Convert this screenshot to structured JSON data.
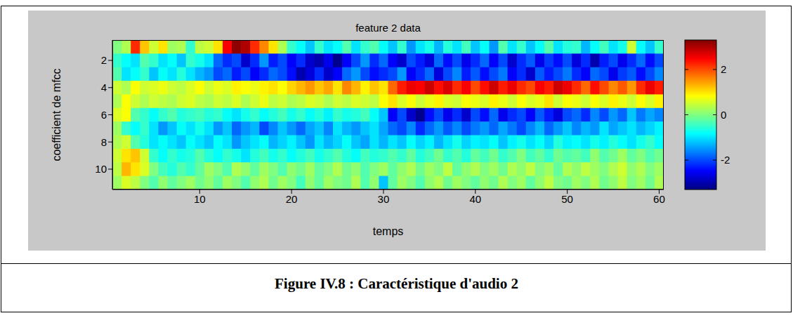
{
  "chart_data": {
    "type": "heatmap",
    "title": "feature 2 data",
    "x_label": "temps",
    "y_label": "coefficient de mfcc",
    "x": [
      1,
      2,
      3,
      4,
      5,
      6,
      7,
      8,
      9,
      10,
      11,
      12,
      13,
      14,
      15,
      16,
      17,
      18,
      19,
      20,
      21,
      22,
      23,
      24,
      25,
      26,
      27,
      28,
      29,
      30,
      31,
      32,
      33,
      34,
      35,
      36,
      37,
      38,
      39,
      40,
      41,
      42,
      43,
      44,
      45,
      46,
      47,
      48,
      49,
      50,
      51,
      52,
      53,
      54,
      55,
      56,
      57,
      58,
      59,
      60
    ],
    "y": [
      1,
      2,
      3,
      4,
      5,
      6,
      7,
      8,
      9,
      10,
      11
    ],
    "xlim": [
      0.5,
      60.5
    ],
    "xticks": [
      10,
      20,
      30,
      40,
      50,
      60
    ],
    "ylim": [
      0.5,
      11.5
    ],
    "yticks": [
      2,
      4,
      6,
      8,
      10
    ],
    "cells": [
      [
        0,
        0.3,
        2.2,
        1.2,
        0.5,
        1.0,
        0.2,
        0.3,
        -0.5,
        0.4,
        0.5,
        1.0,
        2.5,
        3.2,
        3.0,
        2.2,
        1.6,
        1.0,
        0.3,
        -0.5,
        -0.8,
        -1.2,
        -0.5,
        -1.0,
        -0.8,
        -0.3,
        -1.0,
        -0.5,
        -0.3,
        -0.8,
        -1.2,
        -0.5,
        -1.5,
        -1.0,
        -0.7,
        -1.3,
        -0.6,
        -1.0,
        -0.4,
        -1.2,
        -0.8,
        -1.5,
        -0.3,
        -1.0,
        -0.5,
        -1.2,
        -0.8,
        -0.3,
        -1.0,
        -0.6,
        -0.5,
        -1.3,
        -0.8,
        -0.4,
        -1.0,
        -0.7,
        0.5,
        -0.8,
        -1.2,
        -0.5
      ],
      [
        -0.5,
        -0.8,
        -1.0,
        -0.3,
        -0.5,
        -1.0,
        -0.8,
        -1.2,
        -0.5,
        -0.7,
        -1.0,
        -1.8,
        -2.2,
        -2.0,
        -2.8,
        -2.2,
        -1.5,
        -2.3,
        -2.0,
        -2.5,
        -2.2,
        -2.8,
        -3.0,
        -2.6,
        -3.2,
        -2.5,
        -2.0,
        -1.5,
        -2.2,
        -1.8,
        -2.5,
        -2.8,
        -2.0,
        -2.3,
        -2.7,
        -1.8,
        -2.4,
        -2.0,
        -2.6,
        -2.2,
        -1.8,
        -2.5,
        -2.0,
        -2.8,
        -2.2,
        -1.9,
        -2.6,
        -2.1,
        -2.4,
        -2.0,
        -2.7,
        -2.2,
        -3.0,
        -2.3,
        -2.0,
        -2.6,
        -2.2,
        -1.8,
        -2.4,
        -2.0
      ],
      [
        -0.3,
        -1.0,
        -0.8,
        -0.5,
        -1.2,
        -0.8,
        -1.0,
        -0.6,
        -1.0,
        -1.3,
        -1.5,
        -2.0,
        -1.8,
        -2.3,
        -2.0,
        -2.5,
        -2.2,
        -1.8,
        -2.0,
        -2.4,
        -3.0,
        -2.7,
        -2.2,
        -2.8,
        -2.5,
        -1.8,
        -1.5,
        -2.0,
        -2.4,
        -2.2,
        -2.0,
        -1.5,
        -2.5,
        -2.2,
        -1.8,
        -2.7,
        -2.0,
        -1.6,
        -2.3,
        -1.9,
        -2.4,
        -2.0,
        -1.7,
        -2.5,
        -2.2,
        -2.8,
        -1.9,
        -2.3,
        -2.0,
        -1.7,
        -2.2,
        -2.5,
        -1.8,
        -2.0,
        -2.6,
        -2.1,
        -1.9,
        -2.4,
        -2.0,
        -1.6
      ],
      [
        0.5,
        0.3,
        0.8,
        0.5,
        0.6,
        0.7,
        0.5,
        0.4,
        0.6,
        0.8,
        0.5,
        0.7,
        0.6,
        0.9,
        0.8,
        0.7,
        0.9,
        1.0,
        0.8,
        1.1,
        1.3,
        1.5,
        1.2,
        1.4,
        1.0,
        1.6,
        1.3,
        0.9,
        1.2,
        1.0,
        1.8,
        2.3,
        2.6,
        2.5,
        2.8,
        2.4,
        2.7,
        2.2,
        2.5,
        2.0,
        2.4,
        2.8,
        2.3,
        2.6,
        2.2,
        2.0,
        2.5,
        2.3,
        2.8,
        2.6,
        2.2,
        1.8,
        2.4,
        2.0,
        1.6,
        1.9,
        1.5,
        2.2,
        2.6,
        2.3
      ],
      [
        0.3,
        0.8,
        0.5,
        0.3,
        0.5,
        0.4,
        0.3,
        0.5,
        0.6,
        0.4,
        0.3,
        0.5,
        0.4,
        0.6,
        0.3,
        0.5,
        0.7,
        0.4,
        0.5,
        0.3,
        0.4,
        0.6,
        0.5,
        0.3,
        0.5,
        0.4,
        0.6,
        0.5,
        0.4,
        0.8,
        1.0,
        0.6,
        0.8,
        0.5,
        0.7,
        0.9,
        0.6,
        0.5,
        0.8,
        0.7,
        0.6,
        0.9,
        0.7,
        0.5,
        0.8,
        0.6,
        0.7,
        1.0,
        0.5,
        0.8,
        0.7,
        0.5,
        0.8,
        0.6,
        0.9,
        0.7,
        0.5,
        0.8,
        0.6,
        0.9
      ],
      [
        0.6,
        0.8,
        -0.3,
        -0.5,
        -0.8,
        -0.5,
        -0.3,
        -0.6,
        -0.5,
        -0.4,
        -0.6,
        -0.5,
        -0.8,
        -1.0,
        -0.7,
        -0.5,
        -0.8,
        -0.6,
        -0.4,
        -0.7,
        -0.5,
        -0.8,
        -0.6,
        -0.9,
        -0.5,
        -0.7,
        -0.6,
        -0.4,
        -0.8,
        -1.2,
        -2.5,
        -2.0,
        -2.8,
        -3.2,
        -2.4,
        -2.0,
        -2.6,
        -2.2,
        -2.8,
        -2.0,
        -2.4,
        -1.8,
        -2.6,
        -2.2,
        -2.0,
        -2.5,
        -1.9,
        -2.3,
        -2.7,
        -2.0,
        -1.8,
        -2.2,
        -1.6,
        -2.0,
        -1.5,
        -1.8,
        -1.2,
        -1.7,
        -1.4,
        -1.6
      ],
      [
        0.2,
        -0.5,
        -0.8,
        -0.5,
        -1.0,
        -1.5,
        -1.2,
        -0.8,
        -1.0,
        -0.7,
        -1.0,
        -1.5,
        -1.2,
        -1.8,
        -1.5,
        -1.3,
        -2.0,
        -1.6,
        -1.2,
        -1.5,
        -1.8,
        -1.4,
        -1.2,
        -1.6,
        -1.0,
        -1.3,
        -1.5,
        -1.2,
        -1.0,
        -1.4,
        -1.8,
        -2.0,
        -1.6,
        -2.2,
        -1.8,
        -1.5,
        -1.9,
        -1.6,
        -2.0,
        -1.7,
        -1.5,
        -1.8,
        -1.4,
        -1.7,
        -2.0,
        -1.6,
        -1.3,
        -1.8,
        -1.5,
        -1.2,
        -1.6,
        -1.3,
        -1.5,
        -1.0,
        -1.4,
        -1.2,
        -1.0,
        -1.3,
        -1.1,
        -0.9
      ],
      [
        0.3,
        0.5,
        -0.3,
        -0.6,
        -1.0,
        -0.8,
        -1.0,
        -1.2,
        -0.8,
        -1.0,
        -1.2,
        -0.8,
        -1.0,
        -1.5,
        -1.2,
        -1.0,
        -0.8,
        -1.3,
        -1.1,
        -0.9,
        -1.2,
        -1.5,
        -1.0,
        -1.3,
        -1.1,
        -0.8,
        -1.2,
        -1.4,
        -1.0,
        -1.3,
        -1.0,
        -1.2,
        -0.8,
        -1.1,
        -0.9,
        -1.3,
        -1.0,
        -0.7,
        -1.1,
        -0.9,
        -1.0,
        -0.8,
        -1.2,
        -0.9,
        -0.7,
        -1.0,
        -0.8,
        -1.1,
        -0.6,
        -0.9,
        -0.8,
        -1.0,
        -0.7,
        -0.9,
        -0.6,
        -0.8,
        -1.0,
        -0.7,
        -0.5,
        -0.8
      ],
      [
        0.5,
        1.0,
        1.2,
        0.5,
        -0.5,
        -0.8,
        -0.5,
        -0.7,
        -0.6,
        -0.3,
        -0.6,
        -0.8,
        -0.5,
        -0.7,
        -1.0,
        -0.6,
        -0.4,
        -0.7,
        -0.5,
        -0.8,
        -0.6,
        -0.4,
        -0.7,
        -0.5,
        -0.3,
        -0.6,
        -0.8,
        -0.4,
        -0.6,
        -0.5,
        -0.3,
        -0.5,
        -0.2,
        -0.6,
        -0.4,
        -0.1,
        -0.5,
        -0.3,
        -0.6,
        -0.2,
        -0.4,
        -0.1,
        -0.5,
        -0.3,
        0.0,
        -0.4,
        -0.2,
        -0.5,
        -0.1,
        -0.3,
        -0.2,
        -0.4,
        0.1,
        -0.3,
        -0.1,
        0.2,
        -0.2,
        0.0,
        -0.3,
        -0.1
      ],
      [
        0.4,
        1.3,
        1.0,
        0.6,
        0.0,
        -0.4,
        -0.6,
        -0.3,
        -0.5,
        -0.2,
        0.2,
        0.0,
        -0.3,
        0.3,
        0.1,
        -0.2,
        0.2,
        0.0,
        -0.3,
        0.1,
        -0.1,
        0.2,
        -0.2,
        0.0,
        0.3,
        -0.1,
        0.1,
        -0.3,
        0.0,
        0.2,
        -0.2,
        0.1,
        0.3,
        -0.1,
        0.2,
        0.0,
        0.4,
        -0.2,
        0.1,
        0.3,
        0.0,
        0.2,
        -0.1,
        0.3,
        0.1,
        0.4,
        0.0,
        0.2,
        -0.2,
        0.3,
        0.1,
        0.4,
        0.2,
        0.0,
        0.3,
        0.5,
        0.1,
        0.3,
        0.0,
        0.2
      ],
      [
        0.2,
        0.6,
        0.4,
        0.0,
        -0.3,
        0.1,
        -0.2,
        0.0,
        0.2,
        -0.1,
        0.1,
        -0.2,
        0.2,
        0.0,
        -0.3,
        0.1,
        0.3,
        -0.1,
        0.2,
        0.0,
        -0.4,
        0.1,
        -0.2,
        0.2,
        0.0,
        -0.1,
        0.3,
        -0.3,
        0.1,
        -1.2,
        -0.2,
        0.2,
        0.0,
        -0.3,
        0.1,
        0.3,
        -0.1,
        0.2,
        0.0,
        -0.2,
        0.1,
        -0.1,
        0.3,
        0.0,
        0.2,
        -0.2,
        0.1,
        0.4,
        0.0,
        -0.1,
        0.2,
        0.0,
        0.3,
        -0.1,
        0.1,
        0.4,
        0.0,
        0.2,
        -0.1,
        0.3
      ]
    ],
    "color_range": [
      -3.3,
      3.3
    ],
    "color_ticks": [
      -2,
      0,
      2
    ]
  },
  "caption": "Figure IV.8 : Caractéristique d'audio 2"
}
